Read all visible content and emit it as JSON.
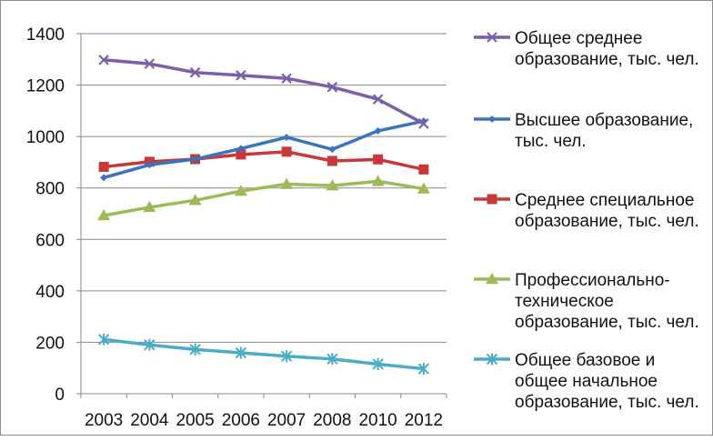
{
  "chart_data": {
    "type": "line",
    "categories": [
      "2003",
      "2004",
      "2005",
      "2006",
      "2007",
      "2008",
      "2010",
      "2012"
    ],
    "ylim": [
      0,
      1400
    ],
    "yticks": [
      0,
      200,
      400,
      600,
      800,
      1000,
      1200,
      1400
    ],
    "grid": true,
    "legend_position": "right",
    "series": [
      {
        "name": "Общее среднее образование, тыс. чел.",
        "legend_lines": [
          "Общее среднее",
          "образование, тыс. чел."
        ],
        "color": "#7b5fa8",
        "marker": "x",
        "values": [
          1298,
          1283,
          1249,
          1238,
          1226,
          1192,
          1145,
          1050
        ]
      },
      {
        "name": "Высшее образование, тыс. чел.",
        "legend_lines": [
          "Высшее образование,",
          "тыс. чел."
        ],
        "color": "#3a74c0",
        "marker": "diamond",
        "values": [
          840,
          890,
          912,
          953,
          997,
          950,
          1022,
          1060
        ]
      },
      {
        "name": "Среднее специальное образование, тыс. чел.",
        "legend_lines": [
          "Среднее специальное",
          "образование, тыс. чел."
        ],
        "color": "#c8373a",
        "marker": "square",
        "values": [
          882,
          902,
          912,
          930,
          941,
          905,
          911,
          872
        ]
      },
      {
        "name": "Профессионально-техническое образование, тыс. чел.",
        "legend_lines": [
          "Профессионально-",
          "техническое",
          "образование, тыс. чел."
        ],
        "color": "#9bbb59",
        "marker": "triangle",
        "values": [
          693,
          725,
          752,
          788,
          815,
          809,
          826,
          797
        ]
      },
      {
        "name": "Общее базовое и общее начальное образование, тыс. чел.",
        "legend_lines": [
          "Общее базовое и",
          "общее начальное",
          "образование, тыс. чел."
        ],
        "color": "#4bacc6",
        "marker": "star",
        "values": [
          211,
          190,
          172,
          159,
          146,
          135,
          115,
          97
        ]
      }
    ]
  }
}
